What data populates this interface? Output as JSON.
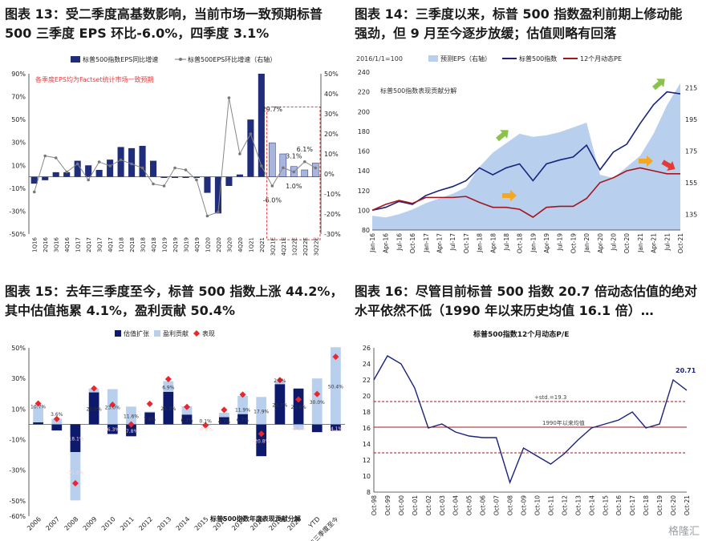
{
  "watermark": "格隆汇",
  "charts": {
    "c13": {
      "title_line1": "图表 13：受二季度高基数影响，当前市场一致预期标普",
      "title_line2": "500 三季度 EPS 环比-6.0%，四季度 3.1%",
      "legend_bar": "标普500指数EPS同比增速",
      "legend_line": "标普500EPS环比增速（右轴）",
      "annotation": "各季度EPS均为Factset统计市场一致预期",
      "left_ticks": [
        "90%",
        "70%",
        "50%",
        "30%",
        "10%",
        "-10%",
        "-30%",
        "-50%"
      ],
      "right_ticks": [
        "50%",
        "40%",
        "30%",
        "20%",
        "10%",
        "0%",
        "-10%",
        "-20%",
        "-30%"
      ],
      "labels": [
        "29.7%",
        "3.1%",
        "6.1%",
        "-6.0%",
        "1.0%"
      ]
    },
    "c14": {
      "title_line1": "图表 14：三季度以来，标普 500 指数盈利前期上修动能",
      "title_line2": "强劲，但 9 月至今逐步放缓；估值则略有回落",
      "base_note": "2016/1/1=100",
      "legend_area": "预测EPS（右轴）",
      "legend_index": "标普500指数",
      "legend_pe": "12个月动态PE",
      "inner_title": "标普500指数表现贡献分解",
      "left_ticks": [
        "240",
        "220",
        "200",
        "180",
        "160",
        "140",
        "120",
        "100",
        "80"
      ],
      "right_ticks": [
        "215",
        "195",
        "175",
        "155",
        "135"
      ]
    },
    "c15": {
      "title_line1": "图表 15：去年三季度至今，标普 500 指数上涨 44.2%，",
      "title_line2": "其中估值拖累 4.1%，盈利贡献 50.4%",
      "legend_val": "估值扩张",
      "legend_earn": "盈利贡献",
      "legend_perf": "表现",
      "inner_title": "标普500指数年度表现贡献分解",
      "y_ticks": [
        "50%",
        "30%",
        "10%",
        "-10%",
        "-30%",
        "-50%",
        "-60%"
      ]
    },
    "c16": {
      "title_line1": "图表 16：尽管目前标普 500 指数 20.7 倍动态估值的绝对",
      "title_line2": "水平依然不低（1990 年以来历史均值 16.1 倍）…",
      "inner_title": "标普500指数12个月动态P/E",
      "std_label": "+std.=19.3",
      "mean_label": "1990年以来均值",
      "end_label": "20.71",
      "y_ticks": [
        "26",
        "24",
        "22",
        "20",
        "18",
        "16",
        "14",
        "12",
        "10",
        "8"
      ]
    }
  },
  "chart_data": [
    {
      "type": "bar",
      "title": "图表 13：受二季度高基数影响，当前市场一致预期标普500三季度EPS环比-6.0%，四季度3.1%",
      "categories": [
        "1Q16",
        "2Q16",
        "3Q16",
        "4Q16",
        "1Q17",
        "2Q17",
        "3Q17",
        "4Q17",
        "1Q18",
        "2Q18",
        "3Q18",
        "4Q18",
        "1Q19",
        "2Q19",
        "3Q19",
        "4Q19",
        "1Q20",
        "2Q20",
        "3Q20",
        "4Q20",
        "1Q21",
        "2Q21",
        "3Q21E",
        "4Q21E",
        "1Q22E",
        "2Q22E",
        "3Q22E"
      ],
      "series": [
        {
          "name": "标普500指数EPS同比增速",
          "axis": "left",
          "values": [
            -6,
            -3,
            4,
            4,
            14,
            10,
            6,
            15,
            26,
            25,
            27,
            14,
            -1,
            -1,
            -1,
            -1,
            -14,
            -32,
            -8,
            2,
            50,
            90,
            29.7,
            20,
            9,
            6,
            12
          ]
        },
        {
          "name": "标普500EPS环比增速（右轴）",
          "axis": "right",
          "type": "line",
          "values": [
            -9,
            9,
            8,
            1,
            5,
            -3,
            6,
            4,
            7,
            5,
            3,
            -5,
            -6,
            3,
            2,
            -3,
            -21,
            -19,
            38,
            10,
            20,
            4,
            -6,
            3.1,
            1,
            6.1,
            3
          ]
        }
      ],
      "ylim_left": [
        -50,
        90
      ],
      "ylim_right": [
        -30,
        50
      ]
    },
    {
      "type": "line",
      "title": "图表 14：三季度以来，标普500指数盈利前期上修动能强劲，但9月至今逐步放缓；估值则略有回落",
      "x": [
        "Jan-16",
        "Apr-16",
        "Jul-16",
        "Oct-16",
        "Jan-17",
        "Apr-17",
        "Jul-17",
        "Oct-17",
        "Jan-18",
        "Apr-18",
        "Jul-18",
        "Oct-18",
        "Jan-19",
        "Apr-19",
        "Jul-19",
        "Oct-19",
        "Jan-20",
        "Apr-20",
        "Jul-20",
        "Oct-20",
        "Jan-21",
        "Apr-21",
        "Jul-21",
        "Oct-21"
      ],
      "series": [
        {
          "name": "预测EPS（右轴）",
          "axis": "right",
          "type": "area",
          "values": [
            134,
            133,
            135,
            138,
            142,
            145,
            148,
            152,
            165,
            174,
            180,
            186,
            184,
            185,
            187,
            190,
            193,
            160,
            158,
            165,
            172,
            186,
            204,
            218
          ]
        },
        {
          "name": "标普500指数",
          "axis": "left",
          "values": [
            100,
            103,
            109,
            106,
            115,
            120,
            124,
            130,
            143,
            136,
            143,
            147,
            130,
            147,
            151,
            154,
            166,
            141,
            159,
            167,
            188,
            207,
            220,
            218
          ]
        },
        {
          "name": "12个月动态PE",
          "axis": "left",
          "values": [
            100,
            106,
            110,
            107,
            113,
            113,
            113,
            114,
            108,
            103,
            103,
            101,
            93,
            103,
            104,
            104,
            112,
            128,
            133,
            140,
            143,
            140,
            137,
            137
          ]
        }
      ],
      "ylim_left": [
        80,
        240
      ],
      "ylim_right": [
        125,
        225
      ]
    },
    {
      "type": "bar",
      "title": "图表 15：去年三季度至今，标普500指数上涨44.2%，其中估值拖累4.1%，盈利贡献50.4%",
      "categories": [
        "2006",
        "2007",
        "2008",
        "2009",
        "2010",
        "2011",
        "2012",
        "2013",
        "2014",
        "2015",
        "2016",
        "2017",
        "2018",
        "2019",
        "2020",
        "YTD",
        "去年三季度至今"
      ],
      "series": [
        {
          "name": "估值扩张",
          "values": [
            1.3,
            -4,
            -18.1,
            20.9,
            -6.3,
            -7.8,
            7.8,
            21.3,
            6.4,
            0.1,
            4.7,
            6.7,
            -20.8,
            26.3,
            23.4,
            -5.1,
            -4.1
          ]
        },
        {
          "name": "盈利贡献",
          "values": [
            10.7,
            3.6,
            -31.6,
            2.5,
            23.0,
            11.6,
            0.5,
            6.9,
            5.4,
            -0.8,
            2.9,
            11.9,
            17.9,
            2.0,
            -3.5,
            30.0,
            50.4
          ]
        },
        {
          "name": "表现",
          "type": "scatter",
          "values": [
            13.6,
            3.5,
            -38.5,
            23.5,
            12.8,
            0,
            13.4,
            29.6,
            11.4,
            -0.7,
            9.5,
            19.4,
            -6.2,
            28.9,
            16.3,
            19.8,
            44.2
          ]
        }
      ],
      "data_labels": [
        "10.7%",
        "3.6%",
        "-18.1%",
        "-31.6%",
        "20.9%",
        "23.0%",
        "-6.3%",
        "11.6%",
        "-7.8%",
        "7.8%",
        "21.3%",
        "6.9%",
        "6.4%",
        "0.1%",
        "-0.8%",
        "4.7%",
        "11.9%",
        "6.7%",
        "17.9%",
        "-20.8%",
        "2.0%",
        "26.3%",
        "23.4%",
        "-5.1%",
        "30.0%",
        "50.4%",
        "-4.1%"
      ],
      "ylim": [
        -60,
        50
      ]
    },
    {
      "type": "line",
      "title": "图表 16：尽管目前标普500指数20.7倍动态估值的绝对水平依然不低（1990年以来历史均值16.1倍）…",
      "x": [
        "Oct-98",
        "Oct-99",
        "Oct-00",
        "Oct-01",
        "Oct-02",
        "Oct-03",
        "Oct-04",
        "Oct-05",
        "Oct-06",
        "Oct-07",
        "Oct-08",
        "Oct-09",
        "Oct-10",
        "Oct-11",
        "Oct-12",
        "Oct-13",
        "Oct-14",
        "Oct-15",
        "Oct-16",
        "Oct-17",
        "Oct-18",
        "Oct-19",
        "Oct-20",
        "Oct-21"
      ],
      "series": [
        {
          "name": "标普500指数12个月动态P/E",
          "values": [
            22,
            25,
            24,
            21,
            16,
            16.5,
            15.5,
            15,
            14.8,
            14.8,
            9.2,
            13.5,
            12.5,
            11.5,
            12.8,
            14.5,
            16,
            16.5,
            17,
            18,
            16,
            16.5,
            22,
            20.71
          ]
        }
      ],
      "reference_lines": {
        "plus_std": 19.3,
        "mean": 16.1,
        "minus_std": 12.9
      },
      "ylim": [
        8,
        26
      ]
    }
  ]
}
